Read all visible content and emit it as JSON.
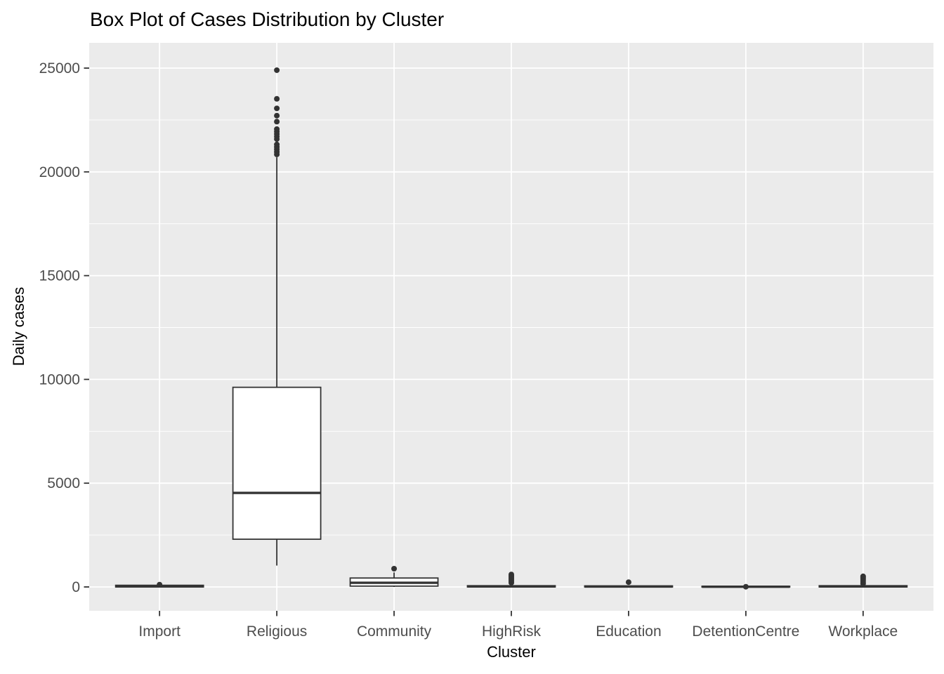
{
  "chart_data": {
    "type": "boxplot",
    "title": "Box Plot of Cases Distribution by Cluster",
    "xlabel": "Cluster",
    "ylabel": "Daily cases",
    "categories": [
      "Import",
      "Religious",
      "Community",
      "HighRisk",
      "Education",
      "DetentionCentre",
      "Workplace"
    ],
    "yticks": [
      0,
      5000,
      10000,
      15000,
      20000,
      25000
    ],
    "ytick_labels": [
      "0",
      "5000",
      "10000",
      "15000",
      "20000",
      "25000"
    ],
    "yminor": [
      2500,
      7500,
      12500,
      17500,
      22500
    ],
    "ylim": [
      -1150,
      26200
    ],
    "grid": true,
    "legend_position": "none",
    "series": [
      {
        "category": "Import",
        "whisker_low": 0,
        "q1": 0,
        "median": 30,
        "q3": 80,
        "whisker_high": 80,
        "outliers": [
          110
        ]
      },
      {
        "category": "Religious",
        "whisker_low": 1030,
        "q1": 2300,
        "median": 4530,
        "q3": 9620,
        "whisker_high": 20700,
        "outliers": [
          24900,
          23520,
          23060,
          22710,
          22420,
          22060,
          21940,
          21820,
          21700,
          21580,
          21320,
          21200,
          21080,
          20960,
          20840
        ]
      },
      {
        "category": "Community",
        "whisker_low": 0,
        "q1": 40,
        "median": 200,
        "q3": 430,
        "whisker_high": 700,
        "outliers": [
          880
        ]
      },
      {
        "category": "HighRisk",
        "whisker_low": 0,
        "q1": 0,
        "median": 25,
        "q3": 60,
        "whisker_high": 60,
        "outliers": [
          200,
          270,
          340,
          410,
          480,
          550,
          600
        ]
      },
      {
        "category": "Education",
        "whisker_low": 0,
        "q1": 0,
        "median": 20,
        "q3": 50,
        "whisker_high": 50,
        "outliers": [
          230
        ]
      },
      {
        "category": "DetentionCentre",
        "whisker_low": 0,
        "q1": 0,
        "median": 10,
        "q3": 30,
        "whisker_high": 30,
        "outliers": [
          10
        ]
      },
      {
        "category": "Workplace",
        "whisker_low": 0,
        "q1": 0,
        "median": 25,
        "q3": 60,
        "whisker_high": 60,
        "outliers": [
          160,
          240,
          320,
          390,
          460,
          510
        ]
      }
    ],
    "colors": {
      "panel_bg": "#EBEBEB",
      "grid_major": "#FFFFFF",
      "grid_minor": "#FFFFFF",
      "box_stroke": "#333333",
      "box_fill": "#FFFFFF",
      "outlier": "#333333",
      "tick_mark": "#333333",
      "axis_text": "#4D4D4D",
      "title_text": "#000000"
    }
  }
}
